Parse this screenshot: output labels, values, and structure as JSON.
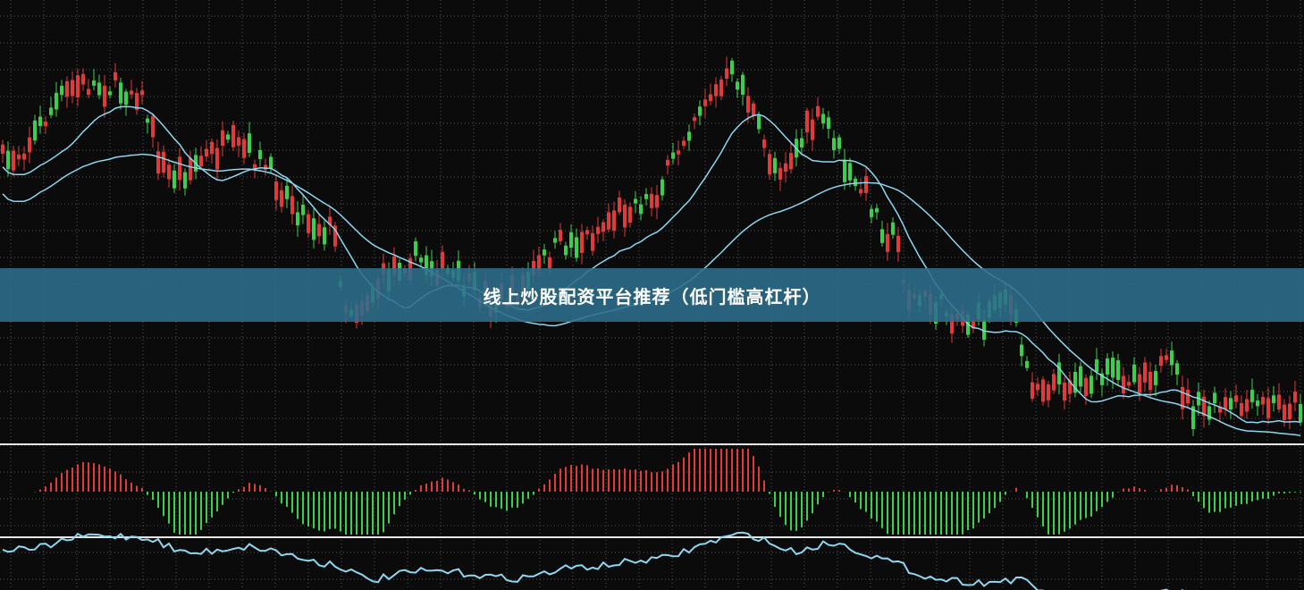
{
  "banner": {
    "title": "线上炒股配资平台推荐（低门槛高杠杆）"
  }
}
